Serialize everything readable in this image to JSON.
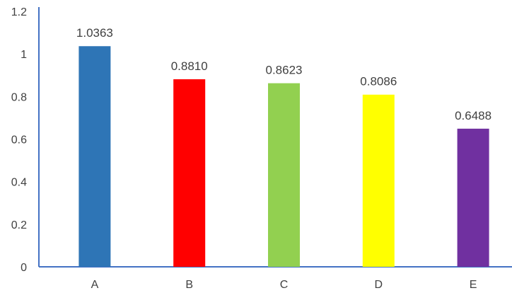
{
  "chart_data": {
    "type": "bar",
    "title": "",
    "xlabel": "",
    "ylabel": "",
    "categories": [
      "A",
      "B",
      "C",
      "D",
      "E"
    ],
    "values": [
      1.0363,
      0.881,
      0.8623,
      0.8086,
      0.6488
    ],
    "data_labels": [
      "1.0363",
      "0.8810",
      "0.8623",
      "0.8086",
      "0.6488"
    ],
    "colors": [
      "#2E75B6",
      "#FF0000",
      "#92D050",
      "#FFFF00",
      "#7030A0"
    ],
    "ylim": [
      0,
      1.2
    ],
    "yticks": [
      0,
      0.2,
      0.4,
      0.6,
      0.8,
      1,
      1.2
    ],
    "ytick_labels": [
      "0",
      "0.2",
      "0.4",
      "0.6",
      "0.8",
      "1",
      "1.2"
    ],
    "grid": false,
    "legend": "none",
    "axis_color": "#4472C4"
  }
}
